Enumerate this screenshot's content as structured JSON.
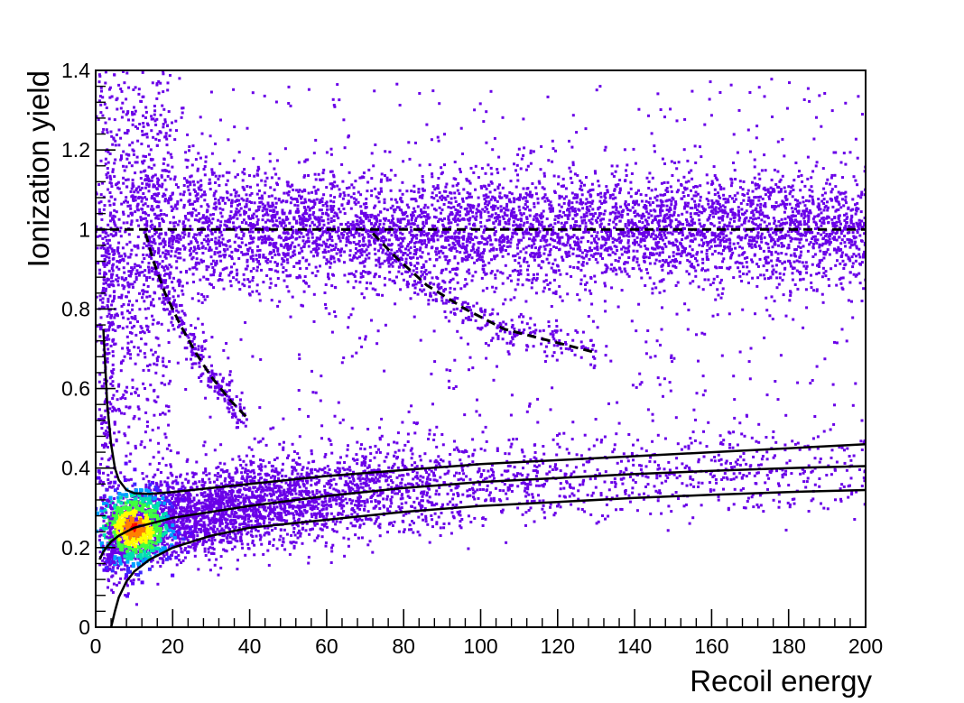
{
  "chart_data": {
    "type": "scatter",
    "title": "",
    "xlabel": "Recoil energy",
    "ylabel": "Ionization yield",
    "xlim": [
      0,
      200
    ],
    "ylim": [
      0,
      1.4
    ],
    "x_ticks": [
      0,
      20,
      40,
      60,
      80,
      100,
      120,
      140,
      160,
      180,
      200
    ],
    "y_ticks": [
      0,
      0.2,
      0.4,
      0.6,
      0.8,
      1,
      1.2,
      1.4
    ],
    "x_tick_labels": [
      "0",
      "20",
      "40",
      "60",
      "80",
      "100",
      "120",
      "140",
      "160",
      "180",
      "200"
    ],
    "y_tick_labels": [
      "0",
      "0.2",
      "0.4",
      "0.6",
      "0.8",
      "1",
      "1.2",
      "1.4"
    ],
    "grid": false,
    "legend": "none",
    "colormap": [
      "#5a00ff",
      "#3c28ff",
      "#00a0ff",
      "#00e0b0",
      "#40ff40",
      "#ffff00",
      "#ff8000",
      "#ff0000"
    ],
    "point_color": "#6a00e8",
    "populations": [
      {
        "description_key": "electron-recoil band",
        "density_center": {
          "x_range": [
            0,
            200
          ],
          "y": 1.0,
          "y_spread": 0.07
        }
      },
      {
        "description_key": "nuclear-recoil band",
        "density_peak": {
          "x": 10,
          "y": 0.25
        }
      }
    ],
    "reference_lines": [
      {
        "style": "dashed",
        "color": "#000000",
        "points": [
          [
            0,
            1.0
          ],
          [
            200,
            1.0
          ]
        ]
      },
      {
        "style": "dashed",
        "color": "#000000",
        "points": [
          [
            13,
            0.99
          ],
          [
            15,
            0.92
          ],
          [
            18,
            0.84
          ],
          [
            22,
            0.76
          ],
          [
            26,
            0.69
          ],
          [
            30,
            0.63
          ],
          [
            35,
            0.57
          ],
          [
            39,
            0.53
          ]
        ]
      },
      {
        "style": "dashed",
        "color": "#000000",
        "points": [
          [
            72,
            0.99
          ],
          [
            78,
            0.93
          ],
          [
            86,
            0.86
          ],
          [
            96,
            0.8
          ],
          [
            106,
            0.75
          ],
          [
            118,
            0.72
          ],
          [
            130,
            0.69
          ]
        ]
      }
    ],
    "curves": [
      {
        "style": "solid",
        "color": "#000000",
        "points": [
          [
            2,
            0.75
          ],
          [
            3,
            0.56
          ],
          [
            4,
            0.46
          ],
          [
            5,
            0.4
          ],
          [
            6,
            0.37
          ],
          [
            8,
            0.345
          ],
          [
            10,
            0.337
          ],
          [
            14,
            0.335
          ],
          [
            20,
            0.34
          ],
          [
            30,
            0.35
          ],
          [
            40,
            0.36
          ],
          [
            60,
            0.38
          ],
          [
            80,
            0.395
          ],
          [
            100,
            0.41
          ],
          [
            120,
            0.42
          ],
          [
            140,
            0.43
          ],
          [
            160,
            0.44
          ],
          [
            180,
            0.45
          ],
          [
            200,
            0.46
          ]
        ]
      },
      {
        "style": "solid",
        "color": "#000000",
        "points": [
          [
            1,
            0.17
          ],
          [
            2,
            0.19
          ],
          [
            4,
            0.215
          ],
          [
            6,
            0.23
          ],
          [
            8,
            0.24
          ],
          [
            10,
            0.25
          ],
          [
            14,
            0.26
          ],
          [
            20,
            0.275
          ],
          [
            30,
            0.29
          ],
          [
            40,
            0.305
          ],
          [
            60,
            0.33
          ],
          [
            80,
            0.35
          ],
          [
            100,
            0.365
          ],
          [
            120,
            0.375
          ],
          [
            140,
            0.385
          ],
          [
            160,
            0.393
          ],
          [
            180,
            0.4
          ],
          [
            200,
            0.405
          ]
        ]
      },
      {
        "style": "solid",
        "color": "#000000",
        "points": [
          [
            4,
            0.0
          ],
          [
            5,
            0.04
          ],
          [
            6,
            0.075
          ],
          [
            8,
            0.115
          ],
          [
            10,
            0.14
          ],
          [
            14,
            0.17
          ],
          [
            20,
            0.2
          ],
          [
            30,
            0.23
          ],
          [
            40,
            0.25
          ],
          [
            60,
            0.27
          ],
          [
            80,
            0.29
          ],
          [
            100,
            0.305
          ],
          [
            120,
            0.315
          ],
          [
            140,
            0.325
          ],
          [
            160,
            0.333
          ],
          [
            180,
            0.34
          ],
          [
            200,
            0.345
          ]
        ]
      }
    ]
  }
}
